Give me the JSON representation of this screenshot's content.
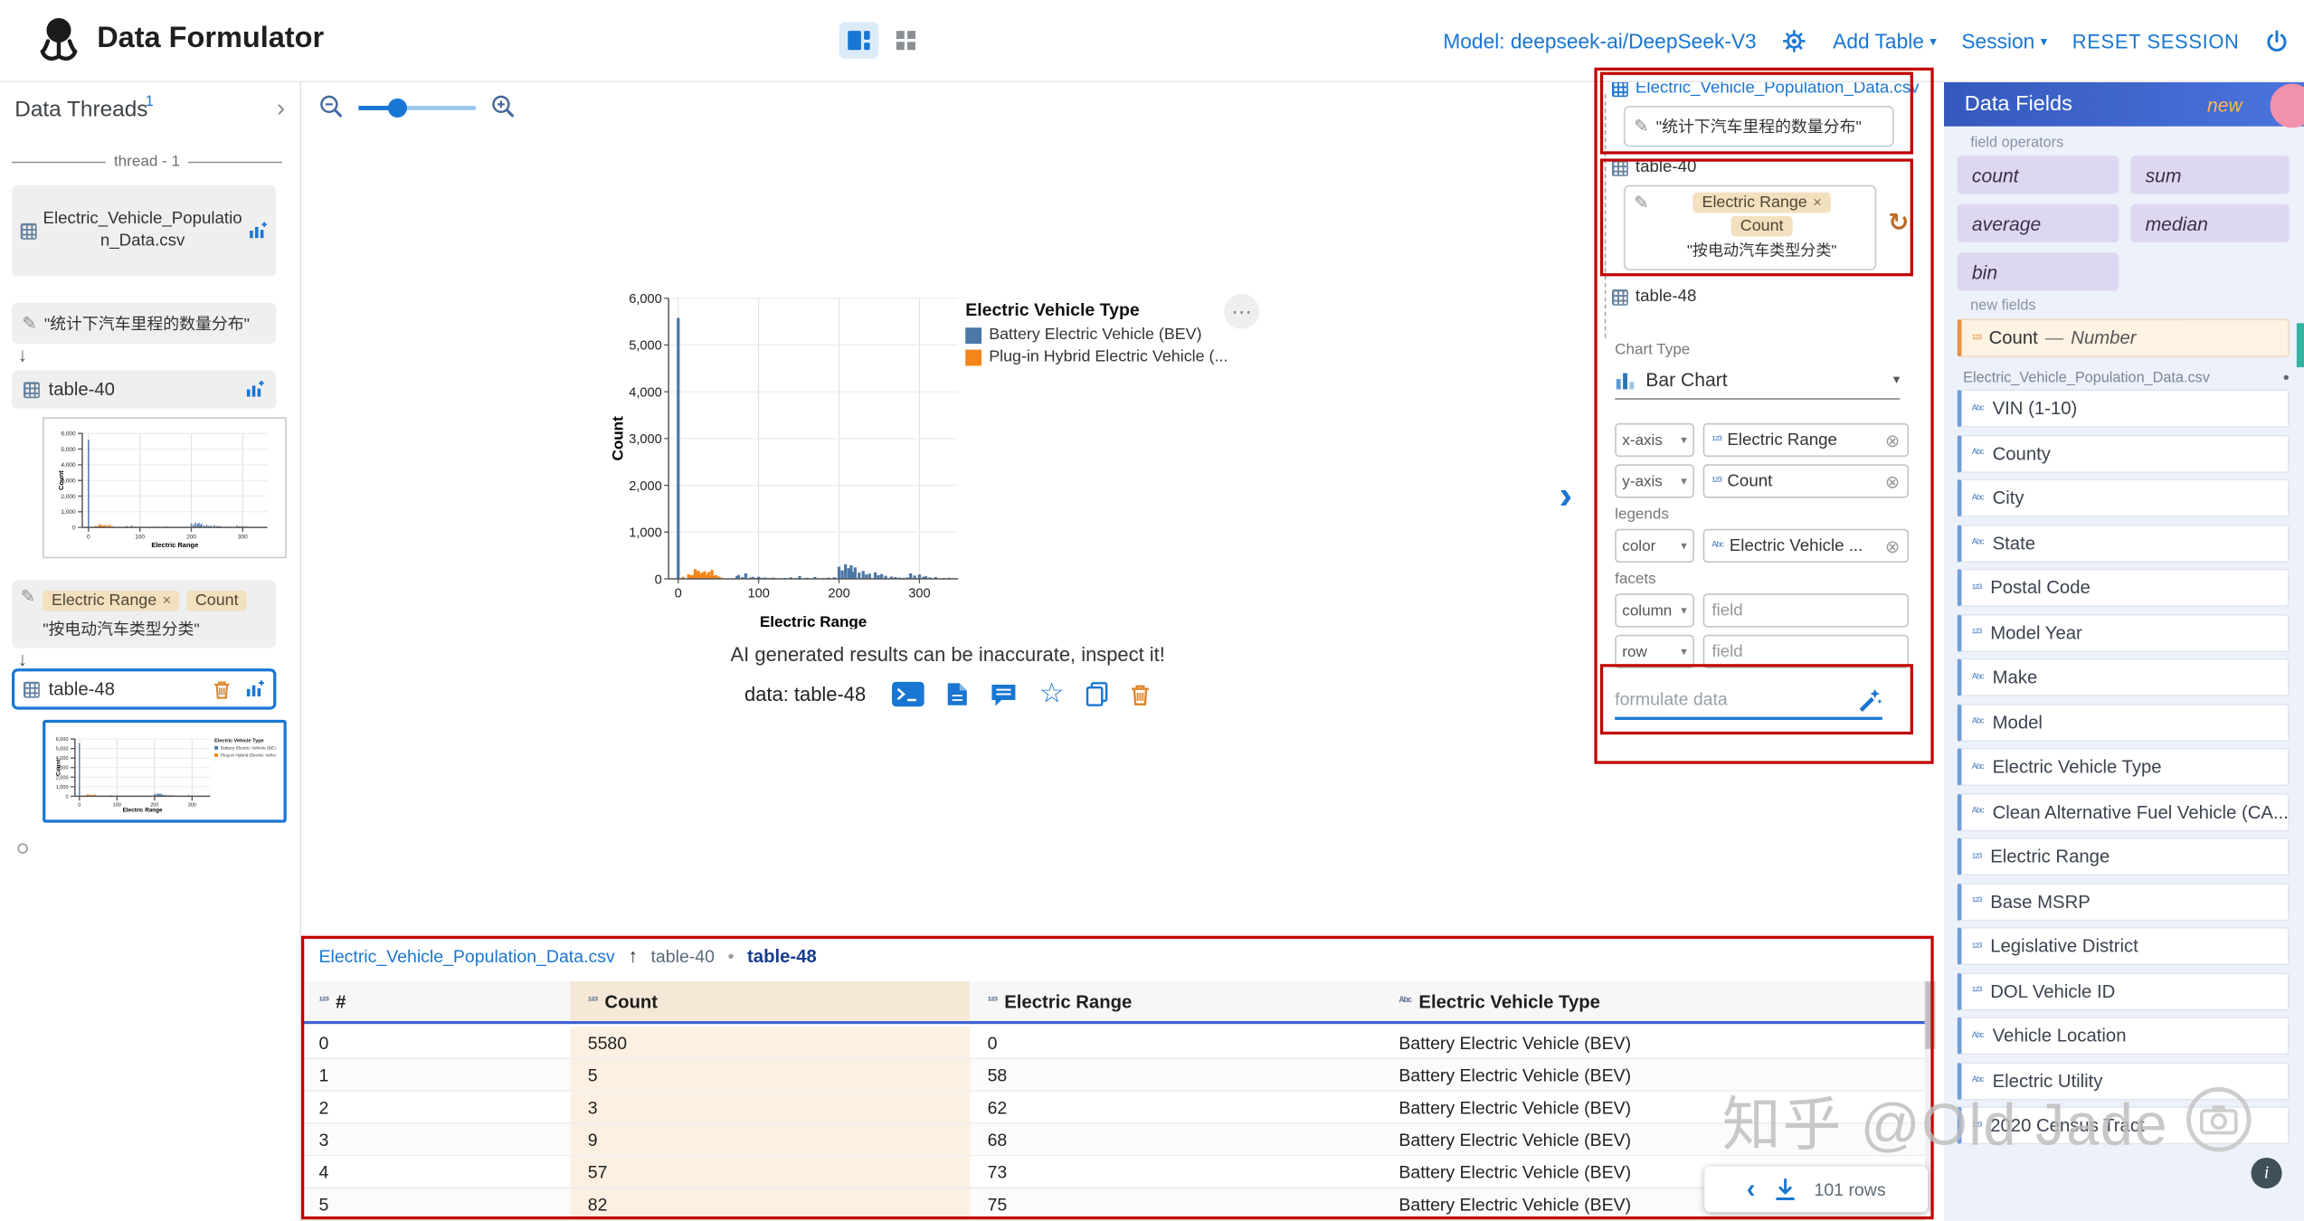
{
  "icons": {
    "caret": "▾",
    "close": "×",
    "remove_circle": "⊗",
    "arrow_down": "↓",
    "arrow_up": "↑",
    "chevron_right": "›",
    "chevron_left": "‹",
    "star": "☆",
    "ellipsis": "⋯",
    "num_type": "¹²³",
    "str_type": "ᴬᵇᶜ",
    "pen": "✎",
    "dot": "•",
    "refresh": "↻",
    "info": "i"
  },
  "colors": {
    "accent": "#1976d2",
    "bar_blue": "#4c78a8",
    "bar_orange": "#f58518",
    "annotation": "#c10000",
    "panel_header": "#3d63c9",
    "new_badge": "#ffb74d"
  },
  "header": {
    "app_title": "Data Formulator",
    "model_label": "Model: deepseek-ai/DeepSeek-V3",
    "add_table_label": "Add Table",
    "session_label": "Session",
    "reset_session_label": "RESET SESSION"
  },
  "sidebar": {
    "title": "Data Threads",
    "thread_count": "1",
    "thread_label": "thread - 1",
    "dataset_name": "Electric_Vehicle_Population_Data.csv",
    "prompt1": "\"统计下汽车里程的数量分布\"",
    "table40_label": "table-40",
    "chip1": "Electric Range",
    "chip2": "Count",
    "prompt2": "\"按电动汽车类型分类\"",
    "table48_label": "table-48"
  },
  "canvas": {
    "warning": "AI generated results can be inaccurate, inspect it!",
    "data_label": "data: table-48"
  },
  "builder": {
    "dataset_link": "Electric_Vehicle_Population_Data.csv",
    "prompt1": "\"统计下汽车里程的数量分布\"",
    "table40_label": "table-40",
    "chip1": "Electric Range",
    "chip2": "Count",
    "prompt2": "\"按电动汽车类型分类\"",
    "table48_label": "table-48",
    "chart_type_label": "Chart Type",
    "chart_type_value": "Bar Chart",
    "field_placeholder": "field",
    "formulate_placeholder": "formulate data",
    "shelves": [
      {
        "kind": "enc",
        "name": "x-axis",
        "field": "Electric Range",
        "ftype": "num"
      },
      {
        "kind": "enc",
        "name": "y-axis",
        "field": "Count",
        "ftype": "num"
      },
      {
        "kind": "label",
        "text": "legends"
      },
      {
        "kind": "enc",
        "name": "color",
        "field": "Electric Vehicle ...",
        "ftype": "str"
      },
      {
        "kind": "label",
        "text": "facets"
      },
      {
        "kind": "enc",
        "name": "column",
        "field": null,
        "ftype": null
      },
      {
        "kind": "enc",
        "name": "row",
        "field": null,
        "ftype": null
      }
    ]
  },
  "fields_panel": {
    "title": "Data Fields",
    "new_badge": "new",
    "operators_label": "field operators",
    "operators": [
      "count",
      "sum",
      "average",
      "median",
      "bin"
    ],
    "new_fields_label": "new fields",
    "new_field": {
      "name": "Count",
      "sep": "—",
      "type": "Number"
    },
    "dataset_label": "Electric_Vehicle_Population_Data.csv",
    "fields": [
      {
        "name": "VIN (1-10)",
        "type": "str"
      },
      {
        "name": "County",
        "type": "str"
      },
      {
        "name": "City",
        "type": "str"
      },
      {
        "name": "State",
        "type": "str"
      },
      {
        "name": "Postal Code",
        "type": "num"
      },
      {
        "name": "Model Year",
        "type": "num"
      },
      {
        "name": "Make",
        "type": "str"
      },
      {
        "name": "Model",
        "type": "str"
      },
      {
        "name": "Electric Vehicle Type",
        "type": "str"
      },
      {
        "name": "Clean Alternative Fuel Vehicle (CA...",
        "type": "str"
      },
      {
        "name": "Electric Range",
        "type": "num"
      },
      {
        "name": "Base MSRP",
        "type": "num"
      },
      {
        "name": "Legislative District",
        "type": "num"
      },
      {
        "name": "DOL Vehicle ID",
        "type": "num"
      },
      {
        "name": "Vehicle Location",
        "type": "str"
      },
      {
        "name": "Electric Utility",
        "type": "str"
      },
      {
        "name": "2020 Census Tract",
        "type": "num"
      }
    ]
  },
  "table_view": {
    "tabs": [
      "Electric_Vehicle_Population_Data.csv",
      "table-40",
      "table-48"
    ],
    "active_tab": "table-48",
    "columns": [
      {
        "label": "#",
        "type": "num"
      },
      {
        "label": "Count",
        "type": "num"
      },
      {
        "label": "Electric Range",
        "type": "num"
      },
      {
        "label": "Electric Vehicle Type",
        "type": "str"
      }
    ],
    "rows": [
      [
        "0",
        "5580",
        "0",
        "Battery Electric Vehicle (BEV)"
      ],
      [
        "1",
        "5",
        "58",
        "Battery Electric Vehicle (BEV)"
      ],
      [
        "2",
        "3",
        "62",
        "Battery Electric Vehicle (BEV)"
      ],
      [
        "3",
        "9",
        "68",
        "Battery Electric Vehicle (BEV)"
      ],
      [
        "4",
        "57",
        "73",
        "Battery Electric Vehicle (BEV)"
      ],
      [
        "5",
        "82",
        "75",
        "Battery Electric Vehicle (BEV)"
      ]
    ],
    "row_count_label": "101 rows"
  },
  "watermark": {
    "text": "知乎 @Old Jade"
  },
  "chart_data": {
    "type": "bar",
    "title": "",
    "xlabel": "Electric Range",
    "ylabel": "Count",
    "xlim": [
      -12,
      348
    ],
    "ylim": [
      0,
      6000
    ],
    "x_ticks": [
      0,
      100,
      200,
      300
    ],
    "y_ticks": [
      0,
      1000,
      2000,
      3000,
      4000,
      5000,
      6000
    ],
    "grid": true,
    "legend": {
      "title": "Electric Vehicle Type",
      "position": "right",
      "entries": [
        {
          "label": "Battery Electric Vehicle (BEV)",
          "color": "#4c78a8"
        },
        {
          "label": "Plug-in Hybrid Electric Vehicle (...",
          "color": "#f58518"
        }
      ]
    },
    "series": [
      {
        "name": "Battery Electric Vehicle (BEV)",
        "color": "#4c78a8",
        "points": [
          [
            0,
            5580
          ],
          [
            58,
            5
          ],
          [
            62,
            3
          ],
          [
            68,
            9
          ],
          [
            73,
            57
          ],
          [
            75,
            82
          ],
          [
            80,
            35
          ],
          [
            84,
            120
          ],
          [
            90,
            28
          ],
          [
            93,
            42
          ],
          [
            97,
            16
          ],
          [
            100,
            45
          ],
          [
            104,
            22
          ],
          [
            108,
            30
          ],
          [
            113,
            18
          ],
          [
            118,
            26
          ],
          [
            125,
            12
          ],
          [
            133,
            20
          ],
          [
            140,
            34
          ],
          [
            146,
            15
          ],
          [
            151,
            58
          ],
          [
            160,
            24
          ],
          [
            170,
            40
          ],
          [
            181,
            18
          ],
          [
            187,
            26
          ],
          [
            194,
            32
          ],
          [
            200,
            258
          ],
          [
            204,
            180
          ],
          [
            208,
            308
          ],
          [
            212,
            228
          ],
          [
            215,
            292
          ],
          [
            218,
            150
          ],
          [
            220,
            246
          ],
          [
            225,
            132
          ],
          [
            230,
            168
          ],
          [
            234,
            92
          ],
          [
            238,
            112
          ],
          [
            245,
            140
          ],
          [
            249,
            78
          ],
          [
            253,
            102
          ],
          [
            258,
            64
          ],
          [
            265,
            50
          ],
          [
            270,
            38
          ],
          [
            275,
            28
          ],
          [
            280,
            22
          ],
          [
            285,
            30
          ],
          [
            289,
            118
          ],
          [
            294,
            70
          ],
          [
            300,
            94
          ],
          [
            305,
            46
          ],
          [
            308,
            56
          ],
          [
            313,
            30
          ],
          [
            320,
            38
          ],
          [
            330,
            18
          ],
          [
            337,
            24
          ]
        ]
      },
      {
        "name": "Plug-in Hybrid Electric Vehicle (...",
        "color": "#f58518",
        "points": [
          [
            6,
            40
          ],
          [
            13,
            95
          ],
          [
            14,
            55
          ],
          [
            16,
            75
          ],
          [
            17,
            62
          ],
          [
            19,
            85
          ],
          [
            21,
            208
          ],
          [
            22,
            150
          ],
          [
            25,
            174
          ],
          [
            26,
            124
          ],
          [
            28,
            96
          ],
          [
            29,
            60
          ],
          [
            30,
            134
          ],
          [
            31,
            80
          ],
          [
            32,
            106
          ],
          [
            33,
            158
          ],
          [
            35,
            70
          ],
          [
            37,
            88
          ],
          [
            38,
            144
          ],
          [
            40,
            60
          ],
          [
            42,
            188
          ],
          [
            44,
            66
          ],
          [
            47,
            78
          ],
          [
            50,
            48
          ],
          [
            53,
            32
          ]
        ]
      }
    ]
  }
}
